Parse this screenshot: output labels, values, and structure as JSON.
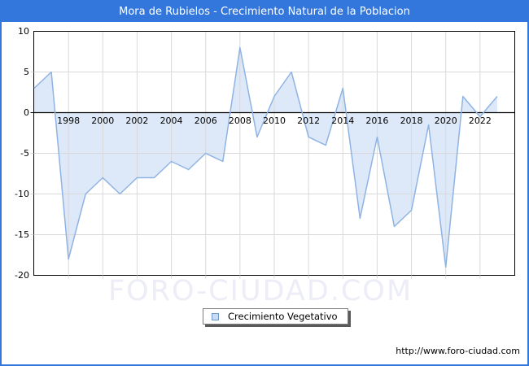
{
  "window": {
    "title": "Mora de Rubielos - Crecimiento Natural de la Poblacion"
  },
  "watermark_text": "FORO-CIUDAD.COM",
  "legend": {
    "label": "Crecimiento Vegetativo"
  },
  "footer": {
    "url": "http://www.foro-ciudad.com"
  },
  "colors": {
    "frame_blue": "#3377dd",
    "title_text": "#ffffff",
    "plot_border": "#000000",
    "grid": "#d9d9d9",
    "zero_line": "#000000",
    "series_line": "#8fb3e3",
    "series_fill": "#dde9f8",
    "legend_swatch_fill": "#c9dcf3",
    "legend_swatch_border": "#6f96c8",
    "watermark": "#ecedf6"
  },
  "chart_data": {
    "type": "area",
    "title": "Mora de Rubielos - Crecimiento Natural de la Poblacion",
    "x": [
      1996,
      1997,
      1998,
      1999,
      2000,
      2001,
      2002,
      2003,
      2004,
      2005,
      2006,
      2007,
      2008,
      2009,
      2010,
      2011,
      2012,
      2013,
      2014,
      2015,
      2016,
      2017,
      2018,
      2019,
      2020,
      2021,
      2022,
      2023
    ],
    "series": [
      {
        "name": "Crecimiento Vegetativo",
        "values": [
          3,
          5,
          -18,
          -10,
          -8,
          -10,
          -8,
          -8,
          -6,
          -7,
          -5,
          -6,
          8,
          -3,
          2,
          5,
          -3,
          -4,
          3,
          -13,
          -3,
          -14,
          -12,
          -1.5,
          -19,
          2,
          -0.5,
          2
        ]
      }
    ],
    "xlim": [
      1996,
      2024
    ],
    "ylim": [
      -20,
      10
    ],
    "yticks": [
      10,
      5,
      0,
      -5,
      -10,
      -15,
      -20
    ],
    "xticks": [
      1998,
      2000,
      2002,
      2004,
      2006,
      2008,
      2010,
      2012,
      2014,
      2016,
      2018,
      2020,
      2022
    ],
    "grid": true,
    "baseline": 0,
    "legend_position": "bottom-center",
    "xlabel": "",
    "ylabel": ""
  }
}
